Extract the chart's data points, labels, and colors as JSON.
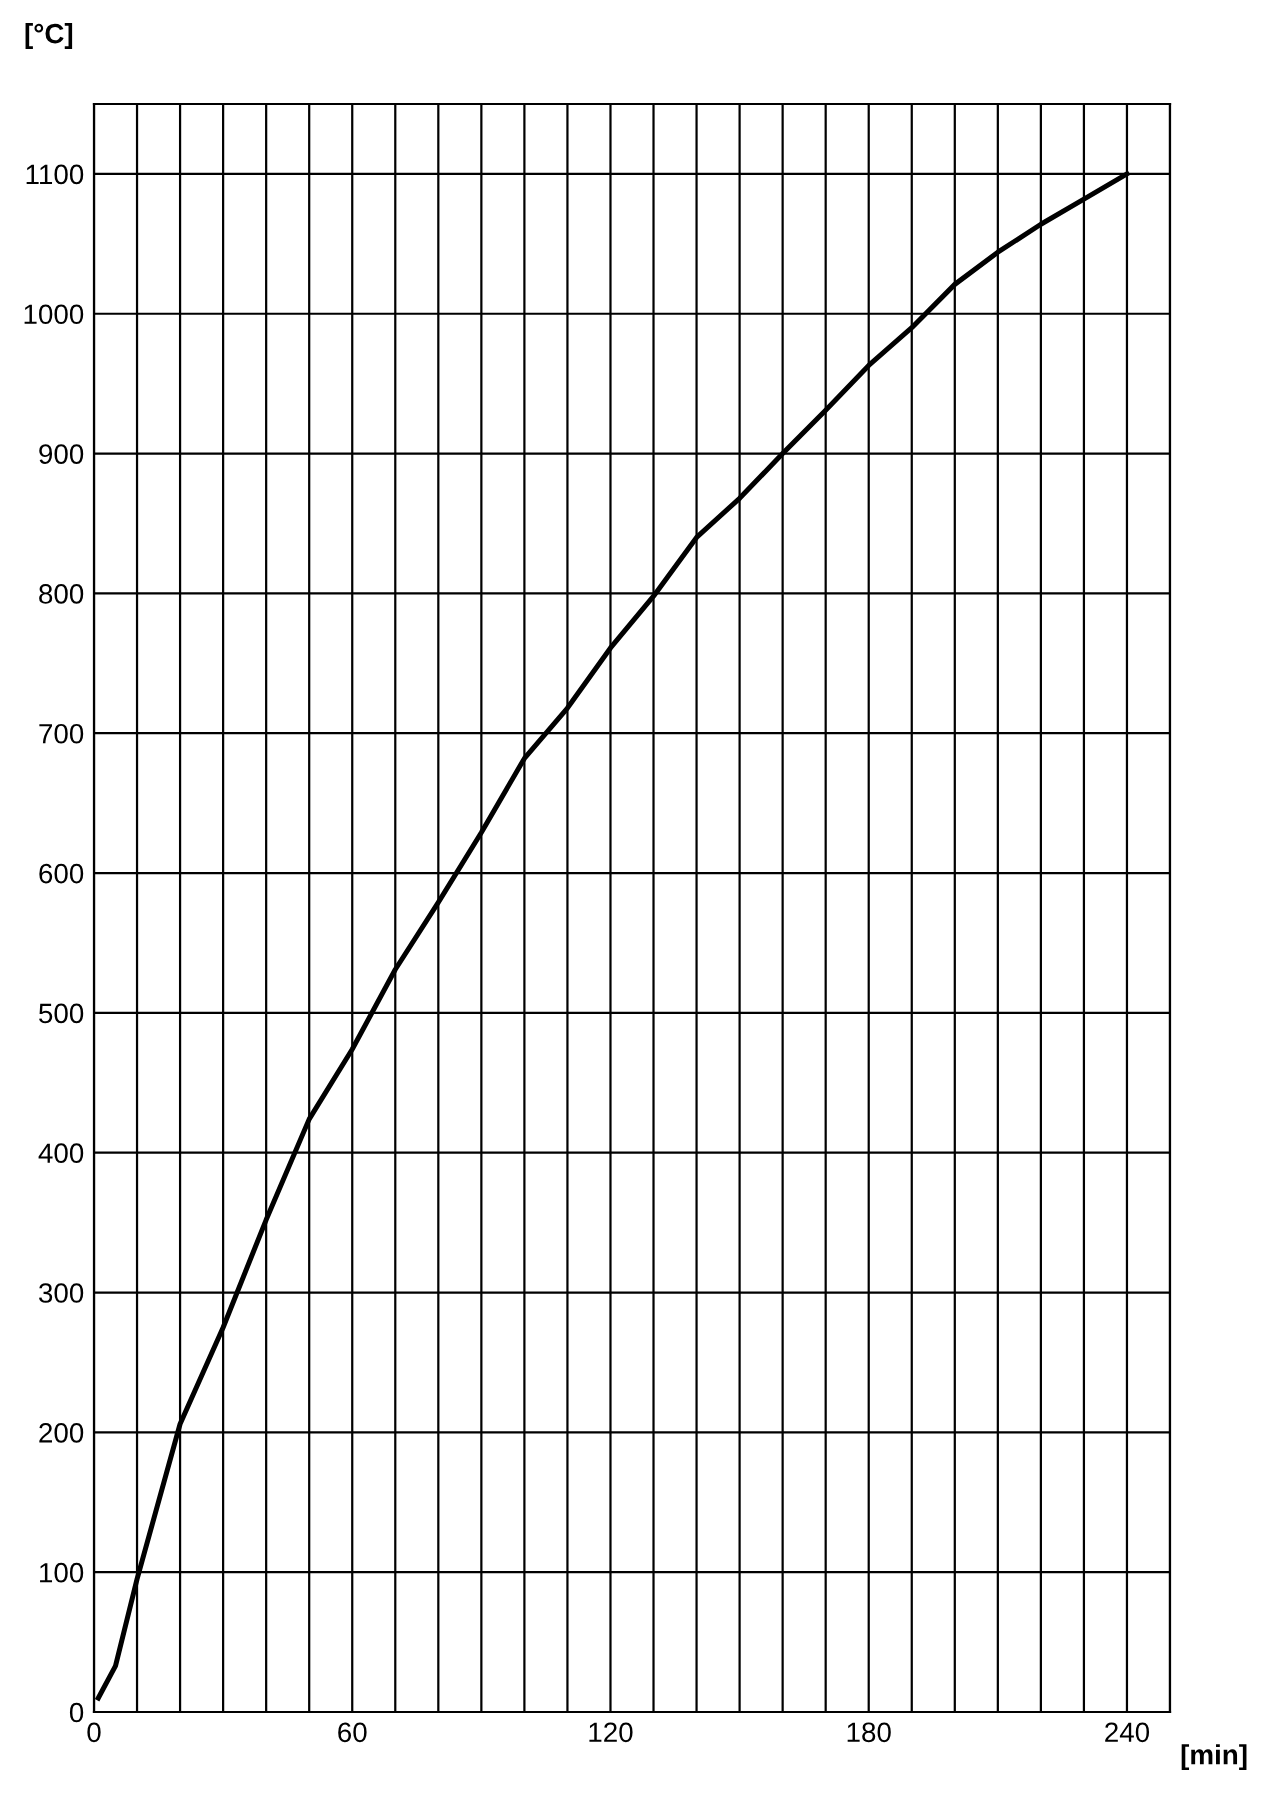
{
  "chart_data": {
    "type": "line",
    "xlabel": "[min]",
    "ylabel": "[°C]",
    "x": [
      1,
      5,
      10,
      20,
      30,
      40,
      50,
      60,
      70,
      80,
      90,
      100,
      110,
      120,
      130,
      140,
      150,
      160,
      170,
      180,
      190,
      200,
      210,
      220,
      230,
      240
    ],
    "series": [
      {
        "color": "#000000",
        "values": [
          10,
          33,
          95,
          206,
          275,
          352,
          424,
          474,
          531,
          579,
          629,
          682,
          718,
          761,
          798,
          840,
          868,
          900,
          931,
          963,
          990,
          1021,
          1044,
          1064,
          1082,
          1100
        ]
      }
    ],
    "xlim": [
      0,
      250
    ],
    "xticks": [
      0,
      {
        "value": 10,
        "label": null
      },
      {
        "value": 20,
        "label": null
      },
      {
        "value": 30,
        "label": null
      },
      {
        "value": 40,
        "label": null
      },
      {
        "value": 50,
        "label": null
      },
      60,
      {
        "value": 70,
        "label": null
      },
      {
        "value": 80,
        "label": null
      },
      {
        "value": 90,
        "label": null
      },
      {
        "value": 100,
        "label": null
      },
      {
        "value": 110,
        "label": null
      },
      120,
      {
        "value": 130,
        "label": null
      },
      {
        "value": 140,
        "label": null
      },
      {
        "value": 150,
        "label": null
      },
      {
        "value": 160,
        "label": null
      },
      {
        "value": 170,
        "label": null
      },
      180,
      {
        "value": 190,
        "label": null
      },
      {
        "value": 200,
        "label": null
      },
      {
        "value": 210,
        "label": null
      },
      {
        "value": 220,
        "label": null
      },
      {
        "value": 230,
        "label": null
      },
      240,
      {
        "value": 250,
        "label": null
      }
    ],
    "ylim": [
      0,
      1150
    ],
    "yticks": [
      0,
      100,
      200,
      300,
      400,
      500,
      600,
      700,
      800,
      900,
      1000,
      1100
    ],
    "grid": true,
    "marker": "none",
    "line_style": "solid"
  }
}
